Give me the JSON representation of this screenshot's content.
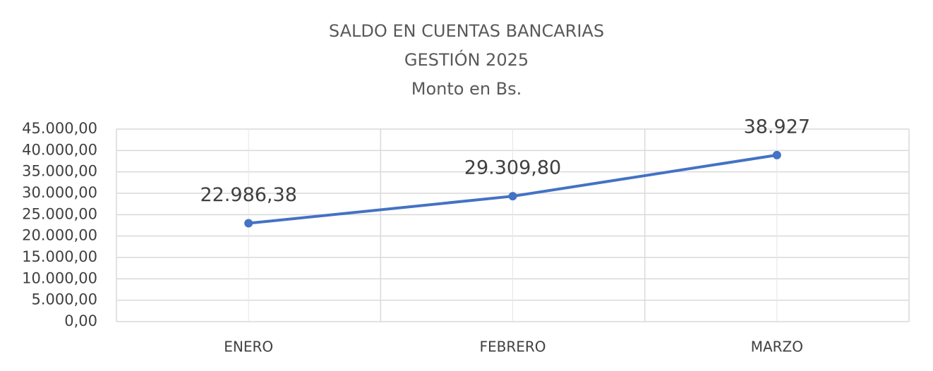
{
  "chart_data": {
    "type": "line",
    "title": [
      "SALDO EN CUENTAS BANCARIAS",
      "GESTIÓN 2025",
      "Monto en Bs."
    ],
    "categories": [
      "ENERO",
      "FEBRERO",
      "MARZO"
    ],
    "series": [
      {
        "color": "#4472c4",
        "values": [
          22986.38,
          29309.8,
          38927
        ],
        "value_labels": [
          "22.986,38",
          "29.309,80",
          "38.927"
        ]
      }
    ],
    "ylim": [
      0,
      45000
    ],
    "yticks": [
      {
        "value": 0,
        "label": "0,00"
      },
      {
        "value": 5000,
        "label": "5.000,00"
      },
      {
        "value": 10000,
        "label": "10.000,00"
      },
      {
        "value": 15000,
        "label": "15.000,00"
      },
      {
        "value": 20000,
        "label": "20.000,00"
      },
      {
        "value": 25000,
        "label": "25.000,00"
      },
      {
        "value": 30000,
        "label": "30.000,00"
      },
      {
        "value": 35000,
        "label": "35.000,00"
      },
      {
        "value": 40000,
        "label": "40.000,00"
      },
      {
        "value": 45000,
        "label": "45.000,00"
      }
    ],
    "grid": true
  }
}
